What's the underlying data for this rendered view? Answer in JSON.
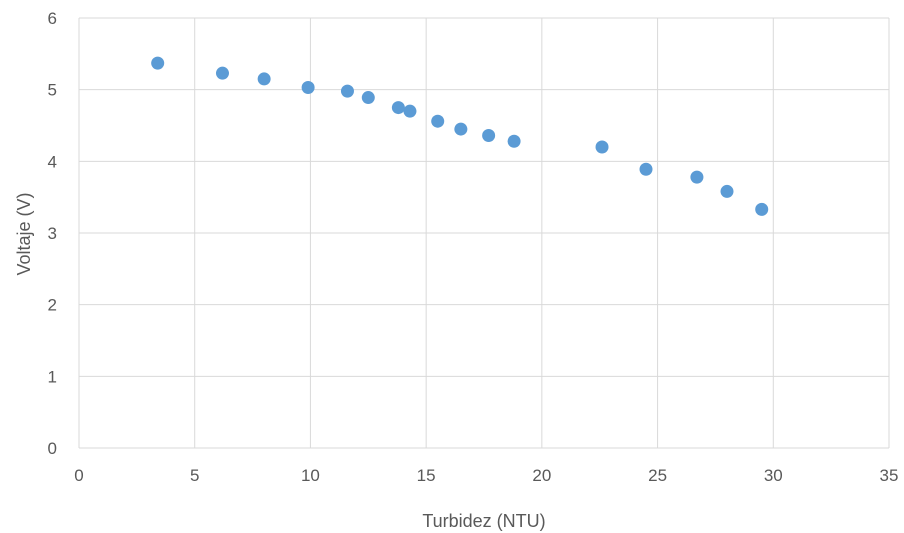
{
  "chart_data": {
    "type": "scatter",
    "title": "",
    "xlabel": "Turbidez (NTU)",
    "ylabel": "Voltaje (V)",
    "xlim": [
      0,
      35
    ],
    "ylim": [
      0,
      6
    ],
    "xticks": [
      0,
      5,
      10,
      15,
      20,
      25,
      30,
      35
    ],
    "yticks": [
      0,
      1,
      2,
      3,
      4,
      5,
      6
    ],
    "grid": true,
    "legend": "none",
    "color": "#5b9bd5",
    "points": [
      {
        "x": 3.4,
        "y": 5.37
      },
      {
        "x": 6.2,
        "y": 5.23
      },
      {
        "x": 8.0,
        "y": 5.15
      },
      {
        "x": 9.9,
        "y": 5.03
      },
      {
        "x": 11.6,
        "y": 4.98
      },
      {
        "x": 12.5,
        "y": 4.89
      },
      {
        "x": 13.8,
        "y": 4.75
      },
      {
        "x": 14.3,
        "y": 4.7
      },
      {
        "x": 15.5,
        "y": 4.56
      },
      {
        "x": 16.5,
        "y": 4.45
      },
      {
        "x": 17.7,
        "y": 4.36
      },
      {
        "x": 18.8,
        "y": 4.28
      },
      {
        "x": 22.6,
        "y": 4.2
      },
      {
        "x": 24.5,
        "y": 3.89
      },
      {
        "x": 26.7,
        "y": 3.78
      },
      {
        "x": 28.0,
        "y": 3.58
      },
      {
        "x": 29.5,
        "y": 3.33
      }
    ]
  }
}
